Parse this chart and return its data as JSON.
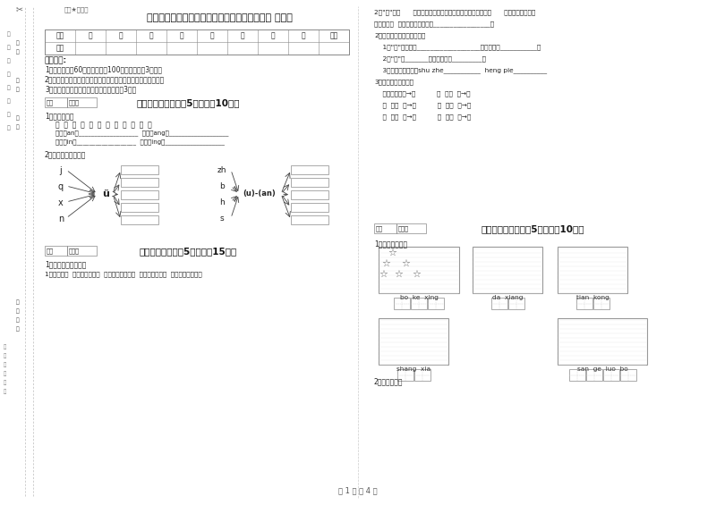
{
  "title": "延安市实验小学一年级语文上学期期中考试试题 附答案",
  "columns": [
    "一",
    "二",
    "三",
    "四",
    "五",
    "六",
    "七",
    "八",
    "总分"
  ],
  "exam_notes_title": "考试须知:",
  "exam_notes": [
    "1、考试时间：60分钟，满分为100分（含卷面分3分）。",
    "2、请首先按要求在试卷的指定位置填写您的姓名、班级、学号。",
    "3、不要在试卷上乱写乱画，卷面不整洁扣3分。"
  ],
  "section1_header": "一、拼音部分（每题5分，共计10分）",
  "section1_sub1": "1、我会分类。",
  "section1_words": "观  林  兴  张  王  姓  经  张  男  进  红  平",
  "section1_lines": [
    "韵母是an的___________________  韵母是ang的___________________",
    "韵母是in的___________________  韵母是ing的___________________"
  ],
  "section1_sub2": "2、我会拼，我会写。",
  "section2_header": "二、填空题（每题5分，共计15分）",
  "section2_sub1": "1、我会按要求填写。",
  "section2_line1": "1、哥哥在（  ）边，弟弟在（  ）边，哥哥跑得（  ），弟弟跑得（  ）（写上反义词）",
  "right_q2_text": [
    "2、\"园\"是（      ）结构的字，按音序查字法要先查大写字母（      ），它的音节是（",
    "），共有（  ）笔，笔画顺序是：_________________。",
    "2、根据笔画笔顺知识填空。",
    "    1、\"马\"的笔顺是___________________，第二笔是___________。",
    "    2、\"耳\"共_______笔，第二笔是_________。",
    "    3、看拼音写笔画：shu zhe___________  heng pie__________",
    "3、照样子，写一写。",
    "    （鱼）（羊）→鲜          （  ）（  ）→明",
    "    （  ）（  ）→天          （  ）（  ）→男",
    "    （  ）（  ）→尘          （  ）（  ）→体"
  ],
  "section3_header": "三、识字写字（每题5分，共计10分）",
  "section3_sub1": "1、看图填汉字。",
  "section3_words": [
    "bo ke xing",
    "da xiang",
    "tian kong",
    "shang xia",
    "san ge luo bo"
  ],
  "section3_sub2": "2、我会组词。",
  "footer": "第 1 页 共 4 页",
  "bg_color": "#ffffff"
}
